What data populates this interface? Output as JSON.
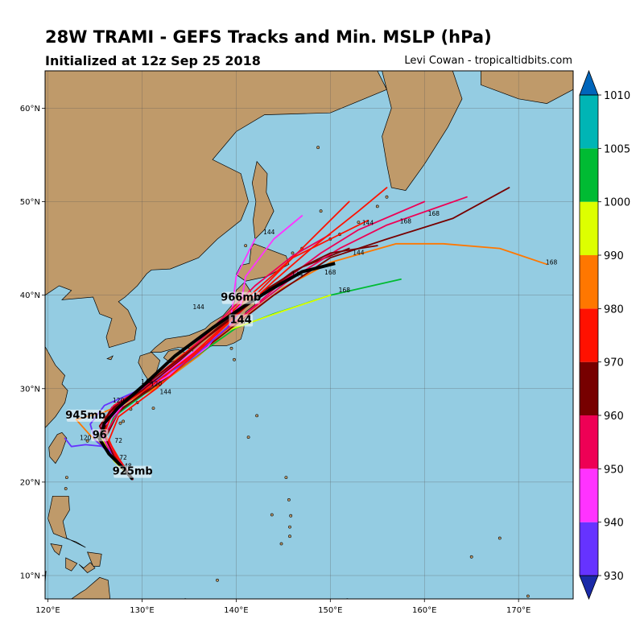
{
  "header": {
    "title": "28W TRAMI - GEFS Tracks and Min. MSLP (hPa)",
    "subtitle": "Initialized at 12z Sep 25 2018",
    "credit": "Levi Cowan - tropicaltidbits.com"
  },
  "map": {
    "lon_range": [
      119.7,
      175.8
    ],
    "lat_range": [
      7.5,
      64.0
    ],
    "lon_ticks": [
      "120°E",
      "130°E",
      "140°E",
      "150°E",
      "160°E",
      "170°E"
    ],
    "lat_ticks": [
      "10°N",
      "20°N",
      "30°N",
      "40°N",
      "50°N",
      "60°N"
    ],
    "ocean_color": "#94cce2",
    "land_color": "#bf9a6a",
    "gridlines": true
  },
  "colorbar": {
    "levels": [
      "930",
      "940",
      "950",
      "960",
      "970",
      "980",
      "990",
      "1000",
      "1005",
      "1010"
    ],
    "colors": [
      "#1a2aa8",
      "#6633ff",
      "#ff33ff",
      "#ee0055",
      "#770000",
      "#ff1100",
      "#ff7700",
      "#ddff00",
      "#00bb33",
      "#00b5b5",
      "#0066bb"
    ]
  },
  "annotations": [
    {
      "text": "945mb",
      "lon": 124.0,
      "lat": 26.8
    },
    {
      "text": "96",
      "lon": 125.5,
      "lat": 24.7
    },
    {
      "text": "925mb",
      "lon": 129.0,
      "lat": 20.8
    },
    {
      "text": "966mb",
      "lon": 140.5,
      "lat": 39.4
    },
    {
      "text": "144",
      "lon": 140.5,
      "lat": 37.0
    }
  ],
  "hour_labels": [
    {
      "text": "168",
      "lon": 173.5,
      "lat": 43.3
    },
    {
      "text": "168",
      "lon": 158.0,
      "lat": 47.7
    },
    {
      "text": "168",
      "lon": 161.0,
      "lat": 48.5
    },
    {
      "text": "168",
      "lon": 151.5,
      "lat": 40.3
    },
    {
      "text": "168",
      "lon": 150.0,
      "lat": 42.2
    },
    {
      "text": "144",
      "lon": 154.0,
      "lat": 47.5
    },
    {
      "text": "144",
      "lon": 153.0,
      "lat": 44.3
    },
    {
      "text": "144",
      "lon": 146.5,
      "lat": 42.0
    },
    {
      "text": "144",
      "lon": 143.5,
      "lat": 46.5
    },
    {
      "text": "144",
      "lon": 130.5,
      "lat": 30.5
    },
    {
      "text": "144",
      "lon": 132.5,
      "lat": 29.4
    },
    {
      "text": "144",
      "lon": 136.0,
      "lat": 38.5
    },
    {
      "text": "120",
      "lon": 127.5,
      "lat": 28.5
    },
    {
      "text": "120",
      "lon": 131.5,
      "lat": 30.3
    },
    {
      "text": "120",
      "lon": 124.0,
      "lat": 24.5
    },
    {
      "text": "72",
      "lon": 128.0,
      "lat": 22.4
    },
    {
      "text": "72",
      "lon": 127.5,
      "lat": 24.2
    },
    {
      "text": "48",
      "lon": 128.5,
      "lat": 21.5
    }
  ],
  "tracks": [
    {
      "pressure_color": "#ff7700",
      "points": [
        [
          129,
          20.3
        ],
        [
          127.5,
          22
        ],
        [
          126,
          23.7
        ],
        [
          124.5,
          25
        ],
        [
          123,
          26.7
        ],
        [
          126,
          27.5
        ],
        [
          131,
          29.8
        ],
        [
          136,
          33.5
        ],
        [
          140,
          37
        ],
        [
          145,
          40.8
        ],
        [
          150,
          43.5
        ],
        [
          157,
          45.5
        ],
        [
          162,
          45.5
        ],
        [
          168,
          45
        ],
        [
          173,
          43.3
        ]
      ]
    },
    {
      "pressure_color": "#00bb33",
      "points": [
        [
          129,
          20.3
        ],
        [
          127.5,
          22.5
        ],
        [
          126,
          24.5
        ],
        [
          127,
          27
        ],
        [
          131,
          30
        ],
        [
          135.5,
          33.3
        ],
        [
          140,
          36.5
        ],
        [
          144,
          38
        ],
        [
          150,
          40
        ],
        [
          157.5,
          41.7
        ]
      ]
    },
    {
      "pressure_color": "#ddff00",
      "points": [
        [
          129,
          20.3
        ],
        [
          127,
          22.3
        ],
        [
          125.5,
          25
        ],
        [
          127,
          27.5
        ],
        [
          130.5,
          30
        ],
        [
          134.5,
          33
        ],
        [
          139,
          36.2
        ],
        [
          145,
          38.3
        ],
        [
          150,
          40
        ]
      ]
    },
    {
      "pressure_color": "#770000",
      "points": [
        [
          129,
          20.3
        ],
        [
          127,
          22.5
        ],
        [
          125.8,
          25
        ],
        [
          126.5,
          27
        ],
        [
          131,
          30
        ],
        [
          135,
          33
        ],
        [
          139.5,
          36.5
        ],
        [
          144,
          40
        ],
        [
          150,
          44
        ],
        [
          156,
          46
        ],
        [
          163,
          48.2
        ],
        [
          169,
          51.5
        ]
      ]
    },
    {
      "pressure_color": "#770000",
      "points": [
        [
          129,
          20.3
        ],
        [
          127.5,
          22
        ],
        [
          126,
          24.5
        ],
        [
          127.5,
          27.5
        ],
        [
          132,
          31
        ],
        [
          137,
          35
        ],
        [
          141,
          38.8
        ],
        [
          147,
          43
        ],
        [
          152,
          45
        ]
      ]
    },
    {
      "pressure_color": "#ff1100",
      "points": [
        [
          129,
          20.3
        ],
        [
          127,
          23
        ],
        [
          125.5,
          26
        ],
        [
          127,
          28.2
        ],
        [
          130.5,
          30.5
        ],
        [
          136,
          35
        ],
        [
          141.5,
          40
        ],
        [
          146,
          44
        ],
        [
          150,
          46
        ],
        [
          154,
          48
        ]
      ]
    },
    {
      "pressure_color": "#ee0055",
      "points": [
        [
          129,
          20.3
        ],
        [
          127.5,
          22.5
        ],
        [
          126,
          25
        ],
        [
          128,
          28.3
        ],
        [
          132,
          31
        ],
        [
          136.5,
          34.5
        ],
        [
          141,
          38
        ],
        [
          145,
          41.5
        ],
        [
          149,
          44.5
        ],
        [
          153,
          47
        ],
        [
          160,
          50
        ]
      ]
    },
    {
      "pressure_color": "#ee0055",
      "points": [
        [
          129,
          20.3
        ],
        [
          127,
          22.5
        ],
        [
          125.5,
          25.5
        ],
        [
          126.8,
          28
        ],
        [
          131,
          30.5
        ],
        [
          135.5,
          33.5
        ],
        [
          140,
          37.2
        ],
        [
          145.5,
          41.5
        ],
        [
          151,
          45
        ],
        [
          156,
          47.5
        ],
        [
          164.5,
          50.5
        ]
      ]
    },
    {
      "pressure_color": "#ff33ff",
      "points": [
        [
          129,
          20.3
        ],
        [
          127,
          22.8
        ],
        [
          125.5,
          25.5
        ],
        [
          127.5,
          28.5
        ],
        [
          133,
          32
        ],
        [
          137.5,
          35.5
        ],
        [
          140.5,
          39
        ],
        [
          141,
          42
        ],
        [
          144,
          46
        ],
        [
          147,
          48.5
        ]
      ]
    },
    {
      "pressure_color": "#ff33ff",
      "points": [
        [
          129,
          20.3
        ],
        [
          127,
          23
        ],
        [
          125.8,
          25.8
        ],
        [
          128.5,
          28.8
        ],
        [
          133,
          31.5
        ],
        [
          137,
          34.5
        ],
        [
          139.5,
          38
        ],
        [
          140,
          42
        ],
        [
          142,
          46
        ]
      ]
    },
    {
      "pressure_color": "#6633ff",
      "points": [
        [
          129,
          20.3
        ],
        [
          127,
          22.7
        ],
        [
          125,
          24.5
        ],
        [
          124.5,
          26.2
        ],
        [
          126,
          28.2
        ],
        [
          130,
          30
        ],
        [
          135,
          33
        ],
        [
          139,
          36.5
        ],
        [
          142,
          40
        ]
      ]
    },
    {
      "pressure_color": "#6633ff",
      "points": [
        [
          129,
          20.3
        ],
        [
          127.5,
          22.5
        ],
        [
          126,
          23.8
        ],
        [
          124,
          24
        ],
        [
          122.5,
          23.8
        ],
        [
          121.8,
          24.7
        ]
      ]
    },
    {
      "pressure_color": "#ff1100",
      "points": [
        [
          129,
          20.3
        ],
        [
          127.5,
          22.6
        ],
        [
          126,
          25.2
        ],
        [
          127,
          27.8
        ],
        [
          131,
          30.3
        ],
        [
          135.5,
          33.8
        ],
        [
          140.5,
          38.4
        ],
        [
          144.5,
          42.5
        ],
        [
          148,
          46
        ],
        [
          152,
          50
        ]
      ]
    },
    {
      "pressure_color": "#ee0055",
      "points": [
        [
          129,
          20.3
        ],
        [
          127,
          23
        ],
        [
          125.5,
          26
        ],
        [
          127.5,
          28.5
        ],
        [
          131.5,
          31
        ],
        [
          135,
          34
        ],
        [
          138.5,
          37.5
        ],
        [
          142,
          41
        ],
        [
          146,
          44.2
        ],
        [
          150,
          46.5
        ]
      ]
    },
    {
      "pressure_color": "#770000",
      "points": [
        [
          129,
          20.3
        ],
        [
          127,
          22.8
        ],
        [
          125.5,
          26
        ],
        [
          127,
          28
        ],
        [
          130.5,
          30.5
        ],
        [
          135,
          34
        ],
        [
          139.5,
          37.5
        ],
        [
          143,
          40.5
        ],
        [
          147,
          43
        ]
      ]
    },
    {
      "pressure_color": "#ff1100",
      "points": [
        [
          129,
          20.3
        ],
        [
          127.5,
          22.2
        ],
        [
          126.5,
          24.5
        ],
        [
          127.5,
          27
        ],
        [
          131.5,
          30
        ],
        [
          136,
          34
        ],
        [
          140,
          37.8
        ],
        [
          144,
          41.5
        ],
        [
          148,
          45
        ],
        [
          153,
          49
        ],
        [
          156,
          51.5
        ]
      ]
    },
    {
      "pressure_color": "#770000",
      "points": [
        [
          129,
          20.3
        ],
        [
          127,
          22.8
        ],
        [
          125.8,
          25.5
        ],
        [
          126.5,
          27.5
        ],
        [
          130,
          29.8
        ],
        [
          134,
          33
        ],
        [
          138,
          36.5
        ],
        [
          142,
          39.5
        ],
        [
          146,
          42.5
        ],
        [
          150,
          44.5
        ],
        [
          155,
          45.3
        ]
      ]
    }
  ],
  "mean_track": [
    [
      129,
      20.3
    ],
    [
      128,
      21.5
    ],
    [
      126.5,
      23
    ],
    [
      125.5,
      24.6
    ],
    [
      126,
      26.3
    ],
    [
      127.5,
      28
    ],
    [
      130,
      30.2
    ],
    [
      133.5,
      33.5
    ],
    [
      137.5,
      36.5
    ],
    [
      140.5,
      38.6
    ],
    [
      143.5,
      40.5
    ],
    [
      147,
      42.5
    ],
    [
      150.5,
      43.4
    ]
  ]
}
